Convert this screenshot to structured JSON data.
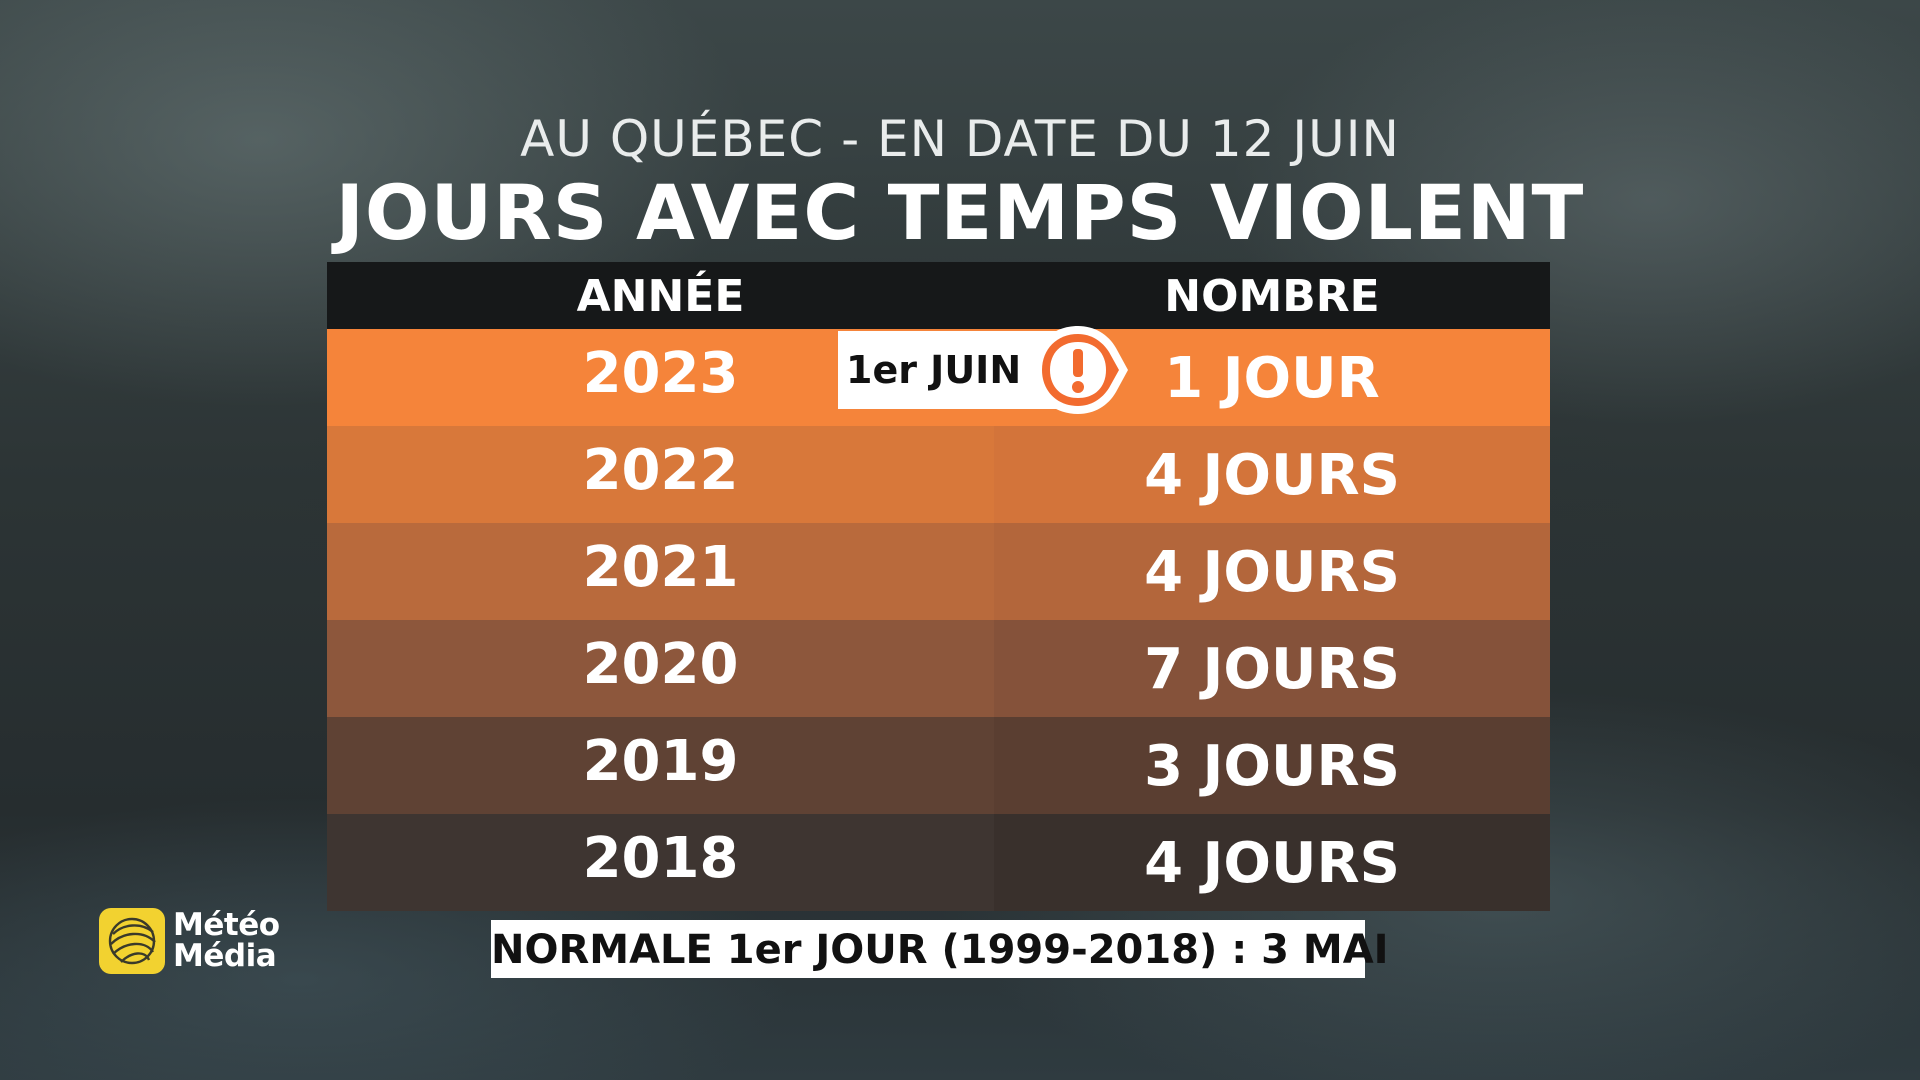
{
  "header": {
    "subtitle": "AU QUÉBEC - EN DATE DU 12 JUIN",
    "title": "JOURS AVEC TEMPS VIOLENT"
  },
  "table": {
    "columns": [
      "ANNÉE",
      "NOMBRE"
    ],
    "rows": [
      {
        "year": "2023",
        "count": "1 JOUR"
      },
      {
        "year": "2022",
        "count": "4 JOURS"
      },
      {
        "year": "2021",
        "count": "4 JOURS"
      },
      {
        "year": "2020",
        "count": "7 JOURS"
      },
      {
        "year": "2019",
        "count": "3 JOURS"
      },
      {
        "year": "2018",
        "count": "4 JOURS"
      }
    ]
  },
  "callout": {
    "label": "1er JUIN",
    "icon": "exclamation-alert-icon",
    "accent": "#f26b2f"
  },
  "footer": {
    "normale": "NORMALE 1er JOUR (1999-2018) : 3 MAI"
  },
  "logo": {
    "line1": "Météo",
    "line2": "Média",
    "color": "#f2d230"
  }
}
